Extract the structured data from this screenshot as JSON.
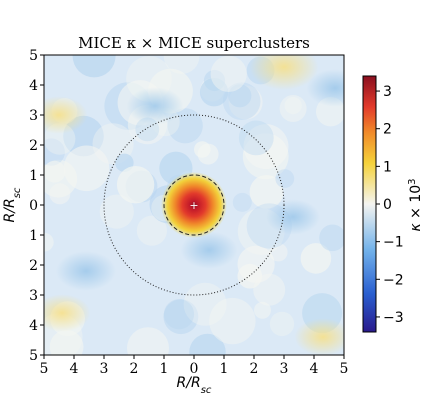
{
  "chart_data": {
    "type": "heatmap",
    "title": "MICE κ × MICE superclusters",
    "xlabel": "R/R_sc",
    "ylabel": "R/R_sc",
    "colorbar_label": "κ × 10³",
    "xlim": [
      -5,
      5
    ],
    "ylim": [
      -5,
      5
    ],
    "xtick_values": [
      -5,
      -4,
      -3,
      -2,
      -1,
      0,
      1,
      2,
      3,
      4,
      5
    ],
    "xtick_labels": [
      "5",
      "4",
      "3",
      "2",
      "1",
      "0",
      "1",
      "2",
      "3",
      "4",
      "5"
    ],
    "ytick_values": [
      5,
      4,
      3,
      2,
      1,
      0,
      -1,
      -2,
      -3,
      -4,
      -5
    ],
    "ytick_labels": [
      "5",
      "4",
      "3",
      "2",
      "1",
      "0",
      "1",
      "2",
      "3",
      "4",
      "5"
    ],
    "colorbar_range": [
      -3.4,
      3.4
    ],
    "colorbar_tick_values": [
      3,
      2,
      1,
      0,
      -1,
      -2,
      -3
    ],
    "colorbar_tick_labels": [
      "3",
      "2",
      "1",
      "0",
      "−1",
      "−2",
      "−3"
    ],
    "colormap": "RdYlBu_r (dark blue → light blue → white → yellow → orange → red → dark red)",
    "center_peak": {
      "x": 0,
      "y": 0,
      "value": 3.4
    },
    "circles": [
      {
        "center": [
          0,
          0
        ],
        "radius": 1,
        "style": "dashed"
      },
      {
        "center": [
          0,
          0
        ],
        "radius": 3,
        "style": "dotted"
      }
    ],
    "center_marker": "+",
    "features": [
      {
        "x": 3.0,
        "y": 4.6,
        "value": 0.9
      },
      {
        "x": -4.5,
        "y": 3.0,
        "value": 0.5
      },
      {
        "x": -4.4,
        "y": -3.6,
        "value": 0.5
      },
      {
        "x": 4.3,
        "y": -4.4,
        "value": 0.5
      },
      {
        "x": -3.6,
        "y": -2.2,
        "value": -0.6
      },
      {
        "x": 0.5,
        "y": -1.5,
        "value": -0.5
      },
      {
        "x": 3.3,
        "y": -0.4,
        "value": -0.4
      },
      {
        "x": -1.3,
        "y": 3.3,
        "value": -0.5
      },
      {
        "x": 4.7,
        "y": 3.9,
        "value": -0.5
      }
    ],
    "grid": false,
    "legend": "none",
    "colors": {
      "vmin": "#2a1a8c",
      "neg": "#4a90d9",
      "zero": "#f2f2ee",
      "pos": "#f2d23b",
      "high": "#e23a2b",
      "vmax": "#8a1020"
    }
  }
}
